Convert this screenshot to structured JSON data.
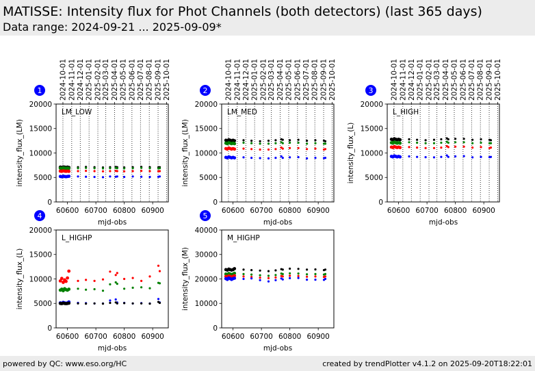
{
  "header": {
    "title": "MATISSE: Intensity flux for Phot Channels (both detectors) (last 365 days)",
    "subtitle": "Data range: 2024-09-21 ... 2025-09-09*"
  },
  "footer": {
    "left": "powered by QC: www.eso.org/HC",
    "right": "created by trendPlotter v4.1.2 on 2025-09-20T18:22:01"
  },
  "colors": {
    "black": "#000000",
    "green": "#008000",
    "red": "#ff0000",
    "blue": "#0000ff",
    "badge": "#0000ff"
  },
  "chart_data": [
    {
      "badge": "1",
      "label": "LM_LOW",
      "type": "scatter",
      "ylabel": "intensity_flux_(LM)",
      "xlabel": "mjd-obs",
      "ylim": [
        0,
        20000
      ],
      "yticks": [
        0,
        5000,
        10000,
        15000,
        20000
      ],
      "xlim": [
        60560,
        60955
      ],
      "xticks": [
        60600,
        60700,
        60800,
        60900
      ],
      "date_ticks": [
        "2024-10-01",
        "2024-11-01",
        "2024-12-01",
        "2025-01-01",
        "2025-02-01",
        "2025-03-01",
        "2025-04-01",
        "2025-05-01",
        "2025-06-01",
        "2025-07-01",
        "2025-08-01",
        "2025-09-01",
        "2025-10-01"
      ],
      "date_tick_mjd": [
        60584,
        60615,
        60645,
        60676,
        60707,
        60735,
        60766,
        60796,
        60827,
        60857,
        60888,
        60919,
        60949
      ],
      "x": [
        60575,
        60580,
        60585,
        60590,
        60595,
        60600,
        60605,
        60637,
        60665,
        60695,
        60725,
        60750,
        60770,
        60775,
        60800,
        60830,
        60860,
        60890,
        60920,
        60925
      ],
      "series": [
        {
          "color": "black",
          "values": [
            7100,
            7050,
            7150,
            7100,
            7050,
            7100,
            7050,
            7100,
            7150,
            7100,
            7050,
            7100,
            7150,
            7100,
            7050,
            7100,
            7150,
            7100,
            7050,
            7100
          ]
        },
        {
          "color": "green",
          "values": [
            6900,
            6850,
            6950,
            6900,
            6850,
            6900,
            6850,
            6900,
            6950,
            6900,
            6850,
            6900,
            6950,
            6900,
            6850,
            6900,
            6950,
            6900,
            6850,
            6900
          ]
        },
        {
          "color": "red",
          "values": [
            6300,
            6250,
            6350,
            6300,
            6250,
            6300,
            6250,
            6300,
            6350,
            6300,
            6250,
            6300,
            6350,
            6300,
            6250,
            6300,
            6350,
            6300,
            6250,
            6300
          ]
        },
        {
          "color": "blue",
          "values": [
            5200,
            5150,
            5250,
            5200,
            5150,
            5200,
            5250,
            5200,
            5150,
            5100,
            5050,
            5200,
            5150,
            5200,
            5100,
            5200,
            5150,
            5100,
            5150,
            5200
          ]
        }
      ]
    },
    {
      "badge": "2",
      "label": "LM_MED",
      "type": "scatter",
      "ylabel": "intensity_flux_(LM)",
      "xlabel": "mjd-obs",
      "ylim": [
        0,
        20000
      ],
      "yticks": [
        0,
        5000,
        10000,
        15000,
        20000
      ],
      "xlim": [
        60560,
        60955
      ],
      "xticks": [
        60600,
        60700,
        60800,
        60900
      ],
      "date_ticks": [
        "2024-10-01",
        "2024-11-01",
        "2024-12-01",
        "2025-01-01",
        "2025-02-01",
        "2025-03-01",
        "2025-04-01",
        "2025-05-01",
        "2025-06-01",
        "2025-07-01",
        "2025-08-01",
        "2025-09-01",
        "2025-10-01"
      ],
      "date_tick_mjd": [
        60584,
        60615,
        60645,
        60676,
        60707,
        60735,
        60766,
        60796,
        60827,
        60857,
        60888,
        60919,
        60949
      ],
      "x": [
        60575,
        60580,
        60585,
        60590,
        60595,
        60600,
        60605,
        60637,
        60665,
        60695,
        60725,
        60750,
        60770,
        60775,
        60800,
        60830,
        60860,
        60890,
        60920,
        60925
      ],
      "series": [
        {
          "color": "black",
          "values": [
            12600,
            12500,
            12700,
            12600,
            12500,
            12600,
            12500,
            12600,
            12500,
            12400,
            12500,
            12600,
            12800,
            12700,
            12600,
            12700,
            12500,
            12600,
            12500,
            12400
          ]
        },
        {
          "color": "green",
          "values": [
            12000,
            11900,
            12100,
            12000,
            11900,
            12000,
            11900,
            12100,
            12000,
            11900,
            11900,
            12000,
            12200,
            12000,
            12100,
            12100,
            11900,
            12000,
            11900,
            11900
          ]
        },
        {
          "color": "red",
          "values": [
            10900,
            10800,
            11000,
            10900,
            10800,
            10900,
            10800,
            10900,
            10800,
            10700,
            10700,
            10800,
            11100,
            10900,
            11000,
            11000,
            10800,
            10900,
            10700,
            10800
          ]
        },
        {
          "color": "blue",
          "values": [
            9100,
            9000,
            9200,
            9100,
            9000,
            9100,
            9000,
            9100,
            9000,
            8950,
            8900,
            9000,
            9300,
            9000,
            9100,
            9150,
            8900,
            9000,
            8950,
            9000
          ]
        }
      ]
    },
    {
      "badge": "3",
      "label": "L_HIGH",
      "type": "scatter",
      "ylabel": "intensity_flux_(L)",
      "xlabel": "mjd-obs",
      "ylim": [
        0,
        20000
      ],
      "yticks": [
        0,
        5000,
        10000,
        15000,
        20000
      ],
      "xlim": [
        60560,
        60955
      ],
      "xticks": [
        60600,
        60700,
        60800,
        60900
      ],
      "date_ticks": [
        "2024-10-01",
        "2024-11-01",
        "2024-12-01",
        "2025-01-01",
        "2025-02-01",
        "2025-03-01",
        "2025-04-01",
        "2025-05-01",
        "2025-06-01",
        "2025-07-01",
        "2025-08-01",
        "2025-09-01",
        "2025-10-01"
      ],
      "date_tick_mjd": [
        60584,
        60615,
        60645,
        60676,
        60707,
        60735,
        60766,
        60796,
        60827,
        60857,
        60888,
        60919,
        60949
      ],
      "x": [
        60575,
        60580,
        60585,
        60590,
        60595,
        60600,
        60605,
        60637,
        60665,
        60695,
        60725,
        60750,
        60770,
        60775,
        60800,
        60830,
        60860,
        60890,
        60920,
        60925
      ],
      "series": [
        {
          "color": "black",
          "values": [
            12800,
            12700,
            12900,
            12800,
            12700,
            12800,
            12700,
            12800,
            12700,
            12600,
            12700,
            12800,
            13000,
            12800,
            12900,
            12900,
            12700,
            12800,
            12700,
            12600
          ]
        },
        {
          "color": "green",
          "values": [
            12100,
            12000,
            12200,
            12100,
            12000,
            12100,
            12000,
            12200,
            12100,
            12000,
            12000,
            12100,
            12300,
            12100,
            12200,
            12200,
            12000,
            12100,
            12000,
            12000
          ]
        },
        {
          "color": "red",
          "values": [
            11200,
            11100,
            11300,
            11200,
            11100,
            11200,
            11100,
            11200,
            11100,
            11000,
            11000,
            11100,
            11400,
            11200,
            11300,
            11300,
            11100,
            11200,
            11000,
            11100
          ]
        },
        {
          "color": "blue",
          "values": [
            9300,
            9200,
            9400,
            9300,
            9200,
            9300,
            9200,
            9300,
            9200,
            9150,
            9100,
            9200,
            9500,
            9200,
            9300,
            9350,
            9100,
            9200,
            9150,
            9200
          ]
        }
      ]
    },
    {
      "badge": "4",
      "label": "L_HIGHP",
      "type": "scatter",
      "ylabel": "intensity_flux_(L)",
      "xlabel": "mjd-obs",
      "ylim": [
        0,
        20000
      ],
      "yticks": [
        0,
        5000,
        10000,
        15000,
        20000
      ],
      "xlim": [
        60560,
        60955
      ],
      "xticks": [
        60600,
        60700,
        60800,
        60900
      ],
      "x": [
        60575,
        60580,
        60585,
        60590,
        60595,
        60600,
        60605,
        60637,
        60665,
        60695,
        60725,
        60750,
        60770,
        60775,
        60800,
        60830,
        60860,
        60890,
        60920,
        60925
      ],
      "series": [
        {
          "color": "red",
          "values": [
            9600,
            10100,
            9300,
            9800,
            9500,
            10200,
            11600,
            9600,
            9800,
            9600,
            9900,
            11500,
            10800,
            11200,
            10000,
            10200,
            9600,
            10500,
            12700,
            11600
          ]
        },
        {
          "color": "green",
          "values": [
            7700,
            7900,
            7600,
            8000,
            7800,
            7700,
            7900,
            8000,
            7800,
            7900,
            7600,
            8900,
            9300,
            9000,
            8000,
            8200,
            8300,
            8100,
            9200,
            9100
          ]
        },
        {
          "color": "blue",
          "values": [
            5100,
            5000,
            5200,
            5100,
            5000,
            5100,
            5300,
            5100,
            5050,
            5000,
            5000,
            5600,
            5800,
            5200,
            5100,
            5000,
            5050,
            5000,
            5900,
            5200
          ]
        },
        {
          "color": "black",
          "values": [
            5000,
            4950,
            5050,
            5000,
            4950,
            5000,
            5050,
            5000,
            4950,
            5000,
            4950,
            5100,
            5200,
            5000,
            5050,
            5000,
            5000,
            4950,
            5300,
            5100
          ]
        }
      ]
    },
    {
      "badge": "5",
      "label": "M_HIGHP",
      "type": "scatter",
      "ylabel": "intensity_flux_(M)",
      "xlabel": "mjd-obs",
      "ylim": [
        0,
        40000
      ],
      "yticks": [
        0,
        10000,
        20000,
        30000,
        40000
      ],
      "xlim": [
        60560,
        60955
      ],
      "xticks": [
        60600,
        60700,
        60800,
        60900
      ],
      "x": [
        60575,
        60580,
        60585,
        60590,
        60595,
        60600,
        60605,
        60637,
        60665,
        60695,
        60725,
        60750,
        60770,
        60775,
        60800,
        60830,
        60860,
        60890,
        60920,
        60925
      ],
      "series": [
        {
          "color": "black",
          "values": [
            23800,
            23600,
            24000,
            23800,
            23600,
            23800,
            24200,
            23800,
            23600,
            23400,
            23200,
            23500,
            24000,
            23800,
            24200,
            24100,
            23800,
            23900,
            23600,
            23800
          ]
        },
        {
          "color": "green",
          "values": [
            22000,
            21800,
            22200,
            22000,
            21800,
            22000,
            22300,
            22000,
            21800,
            21500,
            21300,
            21600,
            22200,
            22000,
            22300,
            22200,
            21900,
            22000,
            21800,
            22000
          ]
        },
        {
          "color": "red",
          "values": [
            21000,
            20800,
            21200,
            21000,
            20800,
            21000,
            21300,
            21000,
            20800,
            20500,
            20300,
            20600,
            21200,
            21000,
            21300,
            21200,
            20900,
            21000,
            20800,
            21000
          ]
        },
        {
          "color": "blue",
          "values": [
            20100,
            19800,
            20400,
            20100,
            19800,
            20100,
            20300,
            20000,
            20200,
            19500,
            19000,
            19500,
            20200,
            19800,
            20300,
            20400,
            19700,
            19700,
            19600,
            20000
          ]
        }
      ]
    }
  ]
}
